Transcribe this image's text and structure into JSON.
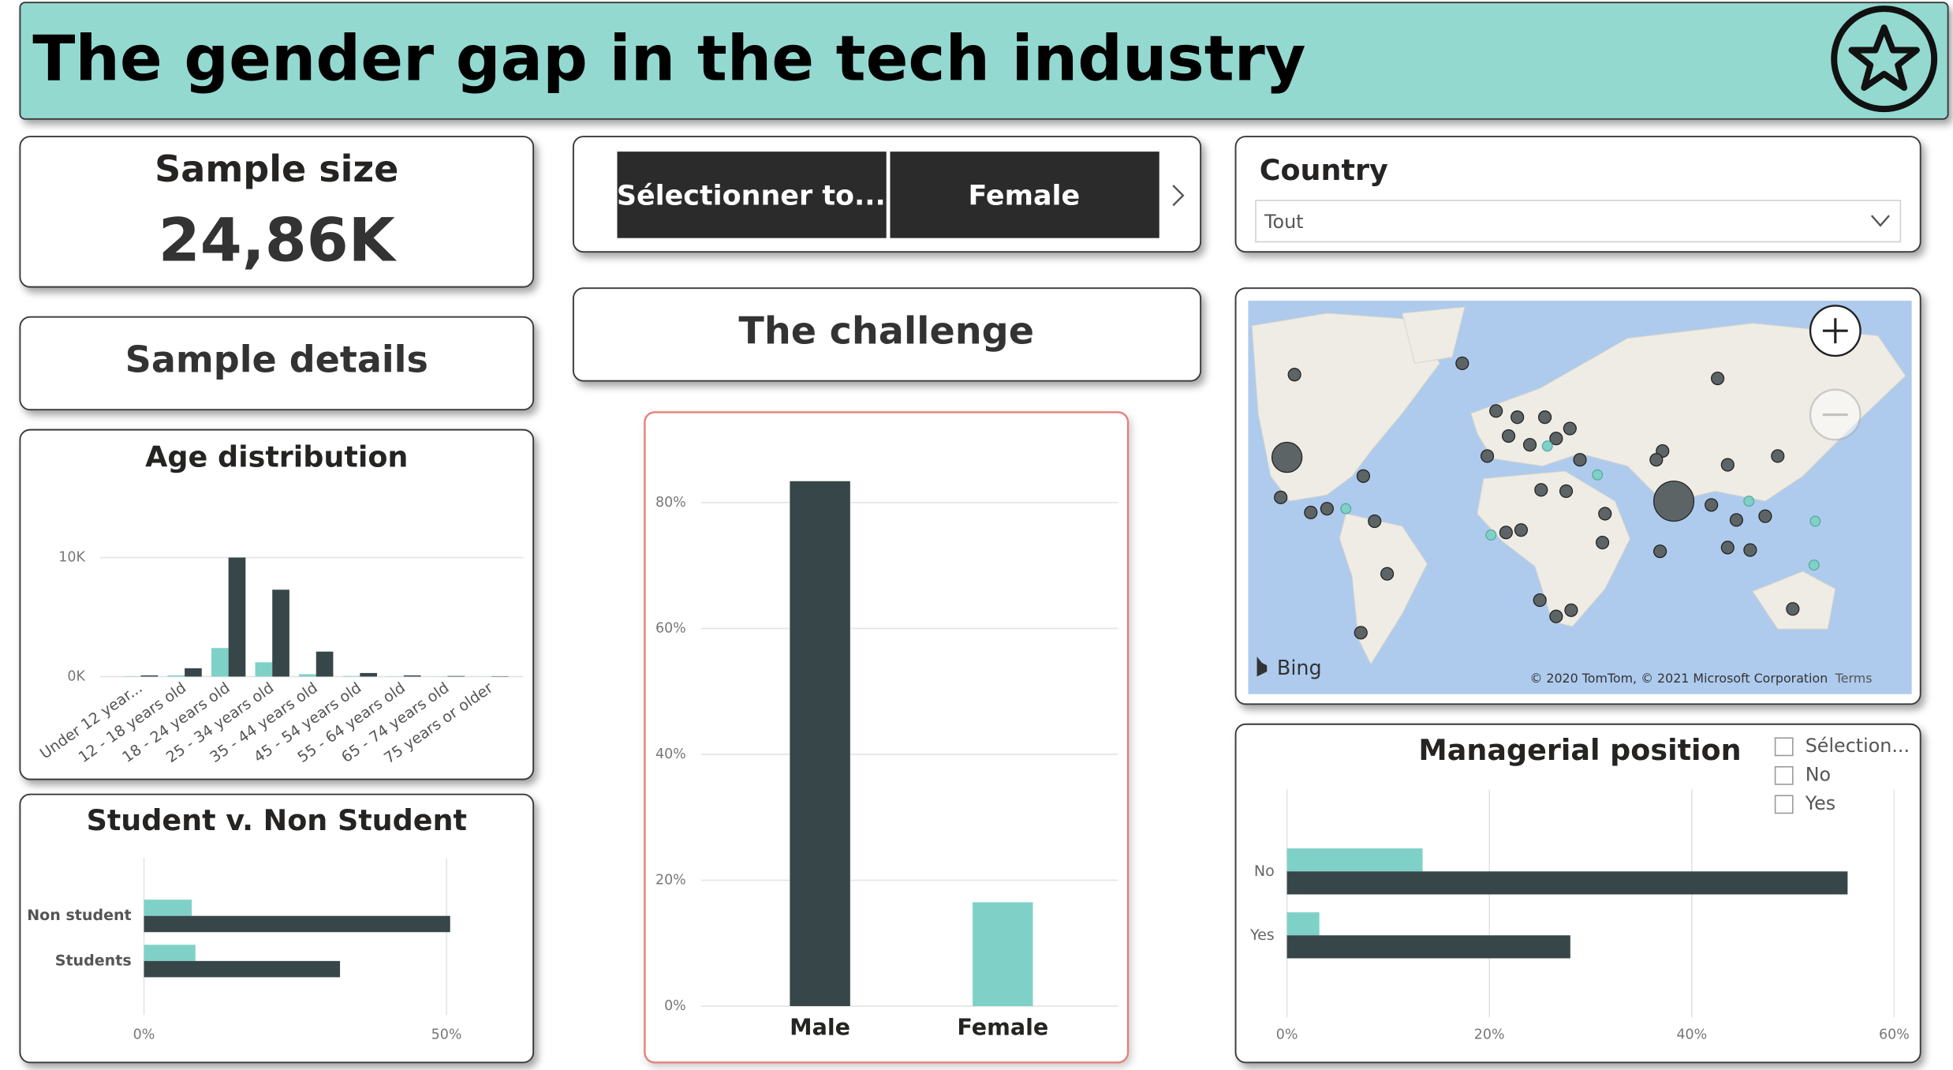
{
  "header": {
    "title": "The gender gap in the tech industry"
  },
  "sample_size": {
    "label": "Sample size",
    "value": "24,86K"
  },
  "sample_details": {
    "label": "Sample details"
  },
  "gender_slicer": {
    "options": [
      "Sélectionner to...",
      "Female"
    ]
  },
  "challenge": {
    "label": "The challenge"
  },
  "country_slicer": {
    "label": "Country",
    "value": "Tout"
  },
  "map": {
    "provider": "Bing",
    "attribution": "© 2020 TomTom, © 2021 Microsoft Corporation",
    "terms": "Terms"
  },
  "managerial_slicer": {
    "options": [
      "Sélection...",
      "No",
      "Yes"
    ]
  },
  "chart_data": [
    {
      "type": "bar",
      "title": "Age distribution",
      "categories": [
        "Under 12 year...",
        "12 - 18 years old",
        "18 - 24 years old",
        "25 - 34 years old",
        "35 - 44 years old",
        "45 - 54 years old",
        "55 - 64 years old",
        "65 - 74 years old",
        "75 years or older"
      ],
      "series": [
        {
          "color": "#7fd1c7",
          "values": [
            30,
            100,
            2400,
            1200,
            200,
            50,
            20,
            10,
            10
          ]
        },
        {
          "color": "#374649",
          "values": [
            100,
            700,
            10000,
            7300,
            2100,
            300,
            100,
            50,
            30
          ]
        }
      ],
      "ylim": [
        0,
        15000
      ],
      "yticks": [
        {
          "value": 0,
          "label": "0K"
        },
        {
          "value": 10000,
          "label": "10K"
        }
      ],
      "grid": true
    },
    {
      "type": "hbar",
      "title": "Student v. Non Student",
      "categories": [
        "Non student",
        "Students"
      ],
      "series": [
        {
          "color": "#7fd1c7",
          "values": [
            7.9,
            8.5
          ]
        },
        {
          "color": "#374649",
          "values": [
            50.6,
            32.4
          ]
        }
      ],
      "xlim": [
        0,
        60
      ],
      "xticks": [
        {
          "value": 0,
          "label": "0%"
        },
        {
          "value": 50,
          "label": "50%"
        }
      ],
      "grid": true
    },
    {
      "type": "bar",
      "categories": [
        "Male",
        "Female"
      ],
      "series": [
        {
          "colors": [
            "#374649",
            "#7fd1c7"
          ],
          "values": [
            83.4,
            16.5
          ]
        }
      ],
      "ylim": [
        0,
        85
      ],
      "yticks": [
        {
          "value": 0,
          "label": "0%"
        },
        {
          "value": 20,
          "label": "20%"
        },
        {
          "value": 40,
          "label": "40%"
        },
        {
          "value": 60,
          "label": "60%"
        },
        {
          "value": 80,
          "label": "80%"
        }
      ],
      "grid": true
    },
    {
      "type": "hbar",
      "title": "Managerial position",
      "categories": [
        "No",
        "Yes"
      ],
      "series": [
        {
          "color": "#7fd1c7",
          "values": [
            13.4,
            3.2
          ]
        },
        {
          "color": "#374649",
          "values": [
            55.4,
            28
          ]
        }
      ],
      "xlim": [
        0,
        60
      ],
      "xticks": [
        {
          "value": 0,
          "label": "0%"
        },
        {
          "value": 20,
          "label": "20%"
        },
        {
          "value": 40,
          "label": "40%"
        },
        {
          "value": 60,
          "label": "60%"
        }
      ],
      "grid": true
    }
  ]
}
